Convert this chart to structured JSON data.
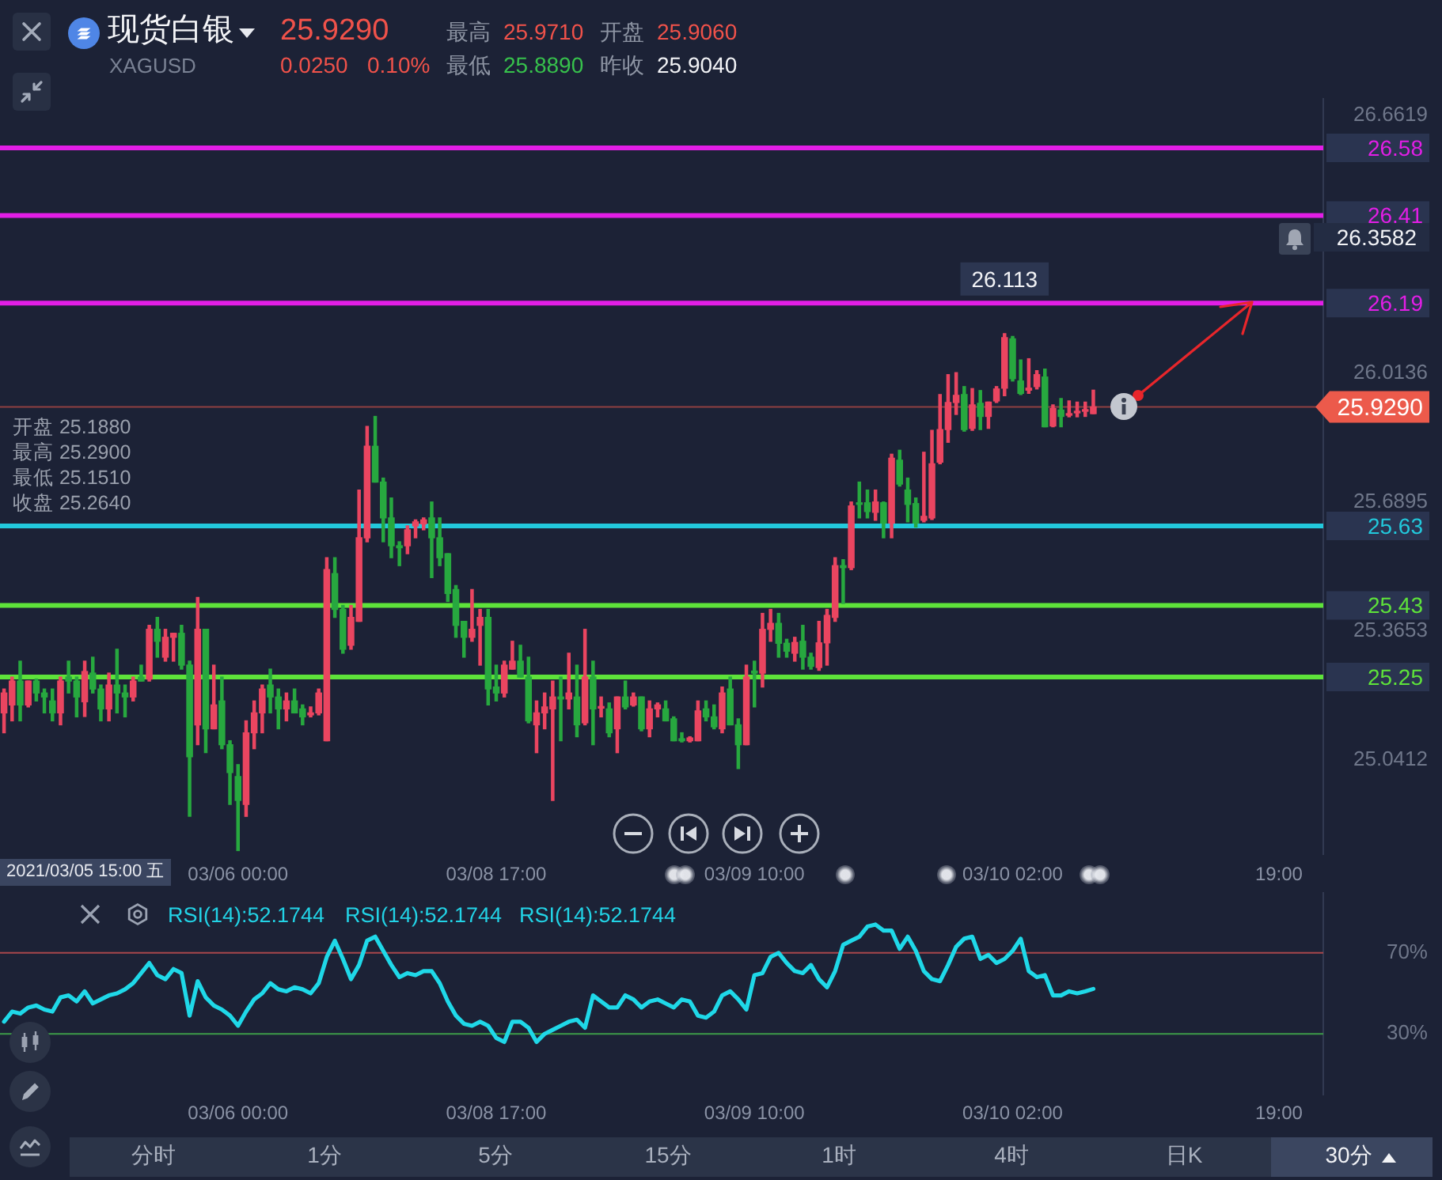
{
  "chart_data": [
    {
      "type": "candlestick",
      "title": "现货白银",
      "subtitle": "XAGUSD",
      "categories": [
        null,
        null,
        null,
        null,
        null,
        null,
        null,
        null,
        null,
        null,
        null,
        null,
        null,
        null,
        null,
        null,
        null,
        null,
        null,
        null,
        null,
        null,
        null,
        null,
        null,
        null,
        null,
        null,
        null,
        "03/06 00:00",
        null,
        null,
        null,
        null,
        null,
        null,
        null,
        null,
        null,
        null,
        null,
        null,
        null,
        null,
        null,
        null,
        null,
        null,
        null,
        null,
        null,
        null,
        null,
        null,
        null,
        null,
        null,
        null,
        null,
        null,
        null,
        "03/08 17:00",
        null,
        null,
        null,
        null,
        null,
        null,
        null,
        null,
        null,
        null,
        null,
        null,
        null,
        null,
        null,
        null,
        null,
        null,
        null,
        null,
        null,
        null,
        null,
        null,
        null,
        null,
        null,
        null,
        null,
        null,
        null,
        "03/09 10:00",
        null,
        null,
        null,
        null,
        null,
        null,
        null,
        null,
        null,
        null,
        null,
        null,
        null,
        null,
        null,
        null,
        null,
        null,
        null,
        null,
        null,
        null,
        null,
        null,
        null,
        null,
        null,
        null,
        null,
        null,
        null,
        "03/10 02:00",
        null,
        null,
        null,
        null,
        null,
        null,
        null,
        null,
        null,
        null,
        null,
        null,
        null,
        null,
        null,
        null,
        null,
        null,
        null,
        null,
        null,
        null,
        null,
        null,
        null,
        null,
        null,
        null,
        null,
        null,
        null,
        null,
        "19:00",
        null,
        null,
        null,
        null,
        null
      ],
      "ohlc": [
        [
          25.16,
          25.22,
          25.11,
          25.21
        ],
        [
          25.18,
          25.25,
          25.14,
          25.24
        ],
        [
          25.24,
          25.29,
          25.14,
          25.18
        ],
        [
          25.18,
          25.24,
          25.175,
          25.24
        ],
        [
          25.24,
          25.245,
          25.19,
          25.21
        ],
        [
          25.21,
          25.22,
          25.16,
          25.2
        ],
        [
          25.19,
          25.22,
          25.14,
          25.16
        ],
        [
          25.16,
          25.25,
          25.13,
          25.24
        ],
        [
          25.25,
          25.29,
          25.21,
          25.24
        ],
        [
          25.24,
          25.25,
          25.15,
          25.2
        ],
        [
          25.188,
          25.29,
          25.151,
          25.264
        ],
        [
          25.26,
          25.3,
          25.21,
          25.22
        ],
        [
          25.22,
          25.23,
          25.14,
          25.17
        ],
        [
          25.17,
          25.26,
          25.14,
          25.23
        ],
        [
          25.23,
          25.32,
          25.16,
          25.21
        ],
        [
          25.21,
          25.23,
          25.15,
          25.2
        ],
        [
          25.2,
          25.25,
          25.19,
          25.24
        ],
        [
          25.25,
          25.28,
          25.24,
          25.24
        ],
        [
          25.245,
          25.38,
          25.24,
          25.37
        ],
        [
          25.37,
          25.4,
          25.3,
          25.34
        ],
        [
          25.3,
          25.37,
          25.29,
          25.35
        ],
        [
          25.35,
          25.36,
          25.29,
          25.36
        ],
        [
          25.36,
          25.38,
          25.27,
          25.28
        ],
        [
          25.28,
          25.29,
          24.9,
          25.05
        ],
        [
          25.13,
          25.45,
          25.08,
          25.37
        ],
        [
          25.37,
          25.37,
          25.06,
          25.12
        ],
        [
          25.12,
          25.28,
          25.12,
          25.18
        ],
        [
          25.19,
          25.25,
          25.07,
          25.08
        ],
        [
          25.08,
          25.09,
          24.93,
          25.01
        ],
        [
          25,
          25.03,
          24.814,
          24.94
        ],
        [
          24.93,
          25.14,
          24.9,
          25.11
        ],
        [
          25.11,
          25.19,
          25.07,
          25.16
        ],
        [
          25.16,
          25.23,
          25.11,
          25.22
        ],
        [
          25.23,
          25.27,
          25.16,
          25.2
        ],
        [
          25.2,
          25.22,
          25.12,
          25.17
        ],
        [
          25.17,
          25.21,
          25.14,
          25.19
        ],
        [
          25.19,
          25.22,
          25.16,
          25.16
        ],
        [
          25.17,
          25.18,
          25.13,
          25.15
        ],
        [
          25.155,
          25.175,
          25.15,
          25.16
        ],
        [
          25.16,
          25.22,
          25.155,
          25.21
        ],
        [
          25.09,
          25.55,
          25.09,
          25.52
        ],
        [
          25.51,
          25.55,
          25.4,
          25.42
        ],
        [
          25.42,
          25.43,
          25.31,
          25.32
        ],
        [
          25.33,
          25.43,
          25.32,
          25.4
        ],
        [
          25.39,
          25.72,
          25.39,
          25.6
        ],
        [
          25.6,
          25.88,
          25.59,
          25.83
        ],
        [
          25.83,
          25.905,
          25.74,
          25.74
        ],
        [
          25.74,
          25.75,
          25.59,
          25.65
        ],
        [
          25.65,
          25.7,
          25.55,
          25.58
        ],
        [
          25.58,
          25.59,
          25.53,
          25.575
        ],
        [
          25.58,
          25.63,
          25.56,
          25.62
        ],
        [
          25.63,
          25.645,
          25.6,
          25.64
        ],
        [
          25.635,
          25.65,
          25.62,
          25.645
        ],
        [
          25.65,
          25.69,
          25.5,
          25.6
        ],
        [
          25.6,
          25.65,
          25.53,
          25.55
        ],
        [
          25.56,
          25.56,
          25.44,
          25.46
        ],
        [
          25.47,
          25.48,
          25.35,
          25.38
        ],
        [
          25.39,
          25.39,
          25.3,
          25.35
        ],
        [
          25.35,
          25.47,
          25.34,
          25.37
        ],
        [
          25.38,
          25.42,
          25.28,
          25.4
        ],
        [
          25.4,
          25.42,
          25.18,
          25.22
        ],
        [
          25.225,
          25.28,
          25.19,
          25.21
        ],
        [
          25.21,
          25.29,
          25.2,
          25.28
        ],
        [
          25.27,
          25.34,
          25.27,
          25.29
        ],
        [
          25.29,
          25.33,
          25.25,
          25.25
        ],
        [
          25.25,
          25.3,
          25.135,
          25.14
        ],
        [
          25.13,
          25.19,
          25.06,
          25.16
        ],
        [
          25.16,
          25.21,
          25.12,
          25.175
        ],
        [
          25.17,
          25.24,
          24.94,
          25.2
        ],
        [
          25.2,
          25.25,
          25.09,
          25.195
        ],
        [
          25.195,
          25.31,
          25.17,
          25.21
        ],
        [
          25.2,
          25.28,
          25.1,
          25.13
        ],
        [
          25.135,
          25.37,
          25.13,
          25.25
        ],
        [
          25.25,
          25.29,
          25.08,
          25.17
        ],
        [
          25.172,
          25.2,
          25.15,
          25.175
        ],
        [
          25.17,
          25.185,
          25.1,
          25.11
        ],
        [
          25.12,
          25.2,
          25.06,
          25.2
        ],
        [
          25.2,
          25.24,
          25.17,
          25.175
        ],
        [
          25.18,
          25.21,
          25.177,
          25.2
        ],
        [
          25.2,
          25.2,
          25.115,
          25.12
        ],
        [
          25.12,
          25.19,
          25.1,
          25.17
        ],
        [
          25.17,
          25.185,
          25.15,
          25.18
        ],
        [
          25.17,
          25.19,
          25.14,
          25.14
        ],
        [
          25.145,
          25.15,
          25.09,
          25.09
        ],
        [
          25.095,
          25.11,
          25.087,
          25.09
        ],
        [
          25.09,
          25.1,
          25.087,
          25.097
        ],
        [
          25.09,
          25.19,
          25.09,
          25.165
        ],
        [
          25.17,
          25.19,
          25.14,
          25.15
        ],
        [
          25.15,
          25.18,
          25.12,
          25.125
        ],
        [
          25.12,
          25.225,
          25.11,
          25.21
        ],
        [
          25.22,
          25.25,
          25.13,
          25.13
        ],
        [
          25.13,
          25.145,
          25.02,
          25.08
        ],
        [
          25.08,
          25.28,
          25.08,
          25.25
        ],
        [
          25.265,
          25.29,
          25.175,
          25.26
        ],
        [
          25.26,
          25.41,
          25.225,
          25.37
        ],
        [
          25.37,
          25.42,
          25.34,
          25.385
        ],
        [
          25.385,
          25.41,
          25.3,
          25.335
        ],
        [
          25.335,
          25.345,
          25.3,
          25.315
        ],
        [
          25.31,
          25.35,
          25.29,
          25.337
        ],
        [
          25.34,
          25.38,
          25.27,
          25.3
        ],
        [
          25.3,
          25.31,
          25.27,
          25.277
        ],
        [
          25.274,
          25.39,
          25.267,
          25.336
        ],
        [
          25.336,
          25.42,
          25.28,
          25.405
        ],
        [
          25.4,
          25.55,
          25.39,
          25.53
        ],
        [
          25.53,
          25.545,
          25.435,
          25.525
        ],
        [
          25.525,
          25.69,
          25.52,
          25.68
        ],
        [
          25.687,
          25.74,
          25.65,
          25.684
        ],
        [
          25.688,
          25.72,
          25.65,
          25.666
        ],
        [
          25.664,
          25.72,
          25.644,
          25.69
        ],
        [
          25.688,
          25.69,
          25.6,
          25.637
        ],
        [
          25.637,
          25.81,
          25.6,
          25.8
        ],
        [
          25.795,
          25.82,
          25.73,
          25.735
        ],
        [
          25.72,
          25.75,
          25.64,
          25.684
        ],
        [
          25.686,
          25.7,
          25.627,
          25.637
        ],
        [
          25.644,
          25.815,
          25.64,
          25.654
        ],
        [
          25.65,
          25.87,
          25.646,
          25.786
        ],
        [
          25.79,
          25.96,
          25.786,
          25.872
        ],
        [
          25.872,
          26.01,
          25.84,
          25.94
        ],
        [
          25.94,
          26.015,
          25.91,
          25.958
        ],
        [
          25.96,
          25.98,
          25.868,
          25.872
        ],
        [
          25.875,
          25.975,
          25.87,
          25.934
        ],
        [
          25.938,
          25.97,
          25.872,
          25.905
        ],
        [
          25.905,
          25.941,
          25.875,
          25.941
        ],
        [
          25.944,
          25.98,
          25.94,
          25.974
        ],
        [
          25.976,
          26.113,
          25.957,
          26.103
        ],
        [
          26.1,
          26.106,
          25.994,
          26
        ],
        [
          25.994,
          26.047,
          25.96,
          25.963
        ],
        [
          25.971,
          26.05,
          25.963,
          25.976
        ],
        [
          25.98,
          26.02,
          25.974,
          26.01
        ],
        [
          26.004,
          26.024,
          25.879,
          25.879
        ],
        [
          25.881,
          25.934,
          25.879,
          25.925
        ],
        [
          25.921,
          25.95,
          25.879,
          25.905
        ],
        [
          25.908,
          25.944,
          25.904,
          25.912
        ],
        [
          25.914,
          25.941,
          25.904,
          25.916
        ],
        [
          25.918,
          25.941,
          25.905,
          25.921
        ],
        [
          25.912,
          25.971,
          25.912,
          25.929
        ],
        null,
        null,
        null,
        null,
        null,
        null,
        null,
        null,
        null,
        null,
        null,
        null,
        null,
        null,
        null,
        null,
        null,
        null,
        null,
        null,
        null,
        null,
        null,
        null,
        null,
        null,
        null,
        null
      ],
      "colors": [
        "#ea4560",
        "#ea4560",
        "#27a83f",
        "#ea4560",
        "#27a83f",
        "#27a83f",
        "#27a83f",
        "#ea4560",
        "#27a83f",
        "#27a83f",
        "#ea4560",
        "#27a83f",
        "#27a83f",
        "#ea4560",
        "#27a83f",
        "#27a83f",
        "#ea4560",
        "#27a83f",
        "#ea4560",
        "#27a83f",
        "#ea4560",
        "#ea4560",
        "#27a83f",
        "#27a83f",
        "#ea4560",
        "#27a83f",
        "#ea4560",
        "#27a83f",
        "#27a83f",
        "#27a83f",
        "#ea4560",
        "#ea4560",
        "#ea4560",
        "#27a83f",
        "#27a83f",
        "#ea4560",
        "#27a83f",
        "#27a83f",
        "#ea4560",
        "#ea4560",
        "#ea4560",
        "#27a83f",
        "#27a83f",
        "#ea4560",
        "#ea4560",
        "#ea4560",
        "#27a83f",
        "#27a83f",
        "#27a83f",
        "#27a83f",
        "#ea4560",
        "#ea4560",
        "#ea4560",
        "#27a83f",
        "#27a83f",
        "#27a83f",
        "#27a83f",
        "#27a83f",
        "#ea4560",
        "#ea4560",
        "#27a83f",
        "#27a83f",
        "#ea4560",
        "#ea4560",
        "#27a83f",
        "#27a83f",
        "#ea4560",
        "#ea4560",
        "#ea4560",
        "#27a83f",
        "#ea4560",
        "#27a83f",
        "#ea4560",
        "#27a83f",
        "#ea4560",
        "#27a83f",
        "#ea4560",
        "#27a83f",
        "#ea4560",
        "#27a83f",
        "#ea4560",
        "#ea4560",
        "#27a83f",
        "#27a83f",
        "#27a83f",
        "#ea4560",
        "#ea4560",
        "#27a83f",
        "#27a83f",
        "#ea4560",
        "#27a83f",
        "#27a83f",
        "#ea4560",
        "#27a83f",
        "#ea4560",
        "#ea4560",
        "#27a83f",
        "#27a83f",
        "#ea4560",
        "#27a83f",
        "#27a83f",
        "#ea4560",
        "#ea4560",
        "#ea4560",
        "#27a83f",
        "#ea4560",
        "#27a83f",
        "#27a83f",
        "#ea4560",
        "#27a83f",
        "#ea4560",
        "#27a83f",
        "#27a83f",
        "#27a83f",
        "#ea4560",
        "#ea4560",
        "#ea4560",
        "#ea4560",
        "#ea4560",
        "#27a83f",
        "#ea4560",
        "#27a83f",
        "#ea4560",
        "#ea4560",
        "#ea4560",
        "#27a83f",
        "#27a83f",
        "#ea4560",
        "#ea4560",
        "#27a83f",
        "#ea4560",
        "#27a83f",
        "#ea4560",
        "#ea4560",
        "#ea4560",
        "#ea4560",
        null,
        null,
        null,
        null,
        null,
        null,
        null,
        null,
        null,
        null,
        null,
        null,
        null,
        null,
        null,
        null,
        null,
        null,
        null,
        null,
        null,
        null,
        null,
        null,
        null,
        null,
        null,
        null
      ],
      "ylim": [
        24.805,
        26.705
      ],
      "yticks": [
        25.0412,
        25.3653,
        25.6895,
        26.0136,
        26.6619
      ],
      "ref_lines": [
        {
          "axis": "y",
          "value": 26.58,
          "label": "26.58",
          "color": "#e21ee6"
        },
        {
          "axis": "y",
          "value": 26.41,
          "label": "26.41",
          "color": "#e21ee6"
        },
        {
          "axis": "y",
          "value": 26.19,
          "label": "26.19",
          "color": "#e21ee6"
        },
        {
          "axis": "y",
          "value": 25.929,
          "label": "25.9290",
          "color": "#ec5a4b"
        },
        {
          "axis": "y",
          "value": 25.63,
          "label": "25.63",
          "color": "#22c9dc"
        },
        {
          "axis": "y",
          "value": 25.43,
          "label": "25.43",
          "color": "#5ee33a"
        },
        {
          "axis": "y",
          "value": 25.25,
          "label": "25.25",
          "color": "#5ee33a"
        }
      ],
      "annotations": [
        "25.9290",
        "0.0250",
        "0.10%",
        "最高",
        "25.9710",
        "开盘",
        "25.9060",
        "最低",
        "25.8890",
        "昨收",
        "25.9040",
        "开盘 25.1880",
        "最高 25.2900",
        "最低 25.1510",
        "收盘 25.2640",
        "2021/03/05 15:00 五",
        {
          "text": "26.113",
          "y": 26.113
        },
        "26.3582"
      ]
    },
    {
      "type": "line",
      "categories": [
        null,
        null,
        null,
        null,
        null,
        null,
        null,
        null,
        null,
        null,
        null,
        null,
        null,
        null,
        null,
        null,
        null,
        null,
        null,
        null,
        null,
        null,
        null,
        null,
        null,
        null,
        null,
        null,
        null,
        "03/06 00:00",
        null,
        null,
        null,
        null,
        null,
        null,
        null,
        null,
        null,
        null,
        null,
        null,
        null,
        null,
        null,
        null,
        null,
        null,
        null,
        null,
        null,
        null,
        null,
        null,
        null,
        null,
        null,
        null,
        null,
        null,
        null,
        "03/08 17:00",
        null,
        null,
        null,
        null,
        null,
        null,
        null,
        null,
        null,
        null,
        null,
        null,
        null,
        null,
        null,
        null,
        null,
        null,
        null,
        null,
        null,
        null,
        null,
        null,
        null,
        null,
        null,
        null,
        null,
        null,
        null,
        "03/09 10:00",
        null,
        null,
        null,
        null,
        null,
        null,
        null,
        null,
        null,
        null,
        null,
        null,
        null,
        null,
        null,
        null,
        null,
        null,
        null,
        null,
        null,
        null,
        null,
        null,
        null,
        null,
        null,
        null,
        null,
        null,
        null,
        "03/10 02:00",
        null,
        null,
        null,
        null,
        null,
        null,
        null,
        null,
        null,
        null,
        null,
        null,
        null,
        null,
        null,
        null,
        null,
        null,
        null,
        null,
        null,
        null,
        null,
        null,
        null,
        null,
        null,
        null,
        null,
        null,
        null,
        null,
        "19:00",
        null,
        null,
        null,
        null,
        null
      ],
      "series": [
        {
          "color": "#1fd8e8",
          "values": [
            36,
            41,
            40,
            43,
            44,
            42,
            41,
            48,
            49,
            46,
            51,
            45,
            47,
            49,
            50,
            52,
            55,
            60,
            65,
            59,
            57,
            62,
            60,
            39,
            56,
            48,
            44,
            42,
            39,
            34,
            41,
            47,
            50,
            55,
            52,
            51,
            53,
            52,
            50,
            55,
            68,
            76,
            67,
            57,
            64,
            76,
            78,
            71,
            64,
            58,
            60,
            59,
            61,
            61,
            55,
            46,
            39,
            35,
            34,
            36,
            34,
            28,
            26,
            36,
            36,
            33,
            26,
            30,
            32,
            34,
            36,
            37,
            33,
            49,
            46,
            43,
            43,
            49,
            47,
            43,
            46,
            47,
            45,
            43,
            47,
            46,
            39,
            38,
            41,
            49,
            51,
            47,
            42,
            59,
            60,
            68,
            70,
            65,
            61,
            60,
            64,
            57,
            53,
            61,
            74,
            76,
            78,
            83,
            84,
            81,
            81,
            72,
            78,
            71,
            61,
            57,
            56,
            64,
            73,
            77,
            78,
            67,
            69,
            65,
            67,
            71,
            77,
            61,
            58,
            59,
            49,
            49,
            51,
            50,
            51,
            52.2,
            null,
            null,
            null,
            null,
            null,
            null,
            null,
            null,
            null,
            null,
            null,
            null,
            null,
            null,
            null,
            null,
            null,
            null,
            null,
            null,
            null,
            null,
            null,
            null,
            null,
            null,
            null,
            null
          ]
        }
      ],
      "ylim": [
        0,
        100
      ],
      "yticks": [
        {
          "value": 30,
          "label": "30%"
        },
        {
          "value": 70,
          "label": "70%"
        }
      ],
      "ref_lines": [
        {
          "axis": "y",
          "value": 70,
          "color": "#a8474c"
        },
        {
          "axis": "y",
          "value": 30,
          "color": "#3c9a48"
        }
      ],
      "annotations": [
        "RSI(14):52.1744",
        "RSI(14):52.1744",
        "RSI(14):52.1744",
        "分时",
        "1分",
        "5分",
        "15分",
        "1时",
        "4时",
        "日K",
        "30分"
      ]
    }
  ]
}
